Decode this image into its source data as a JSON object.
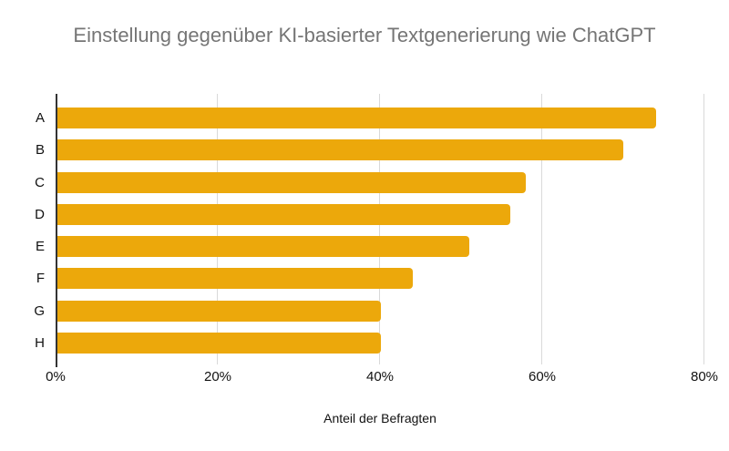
{
  "chart_data": {
    "type": "bar",
    "orientation": "horizontal",
    "title": "Einstellung gegenüber KI-basierter Textgenerierung wie ChatGPT",
    "categories": [
      "A",
      "B",
      "C",
      "D",
      "E",
      "F",
      "G",
      "H"
    ],
    "values": [
      74,
      70,
      58,
      56,
      51,
      44,
      40,
      40
    ],
    "value_unit": "%",
    "xlabel": "Anteil der Befragten",
    "ylabel": "",
    "xlim": [
      0,
      80
    ],
    "xticks": [
      "0%",
      "20%",
      "40%",
      "60%",
      "80%"
    ],
    "grid": true,
    "legend": "none",
    "colors": {
      "bar": "#ECA80B",
      "title_text": "#757575",
      "axis_text": "#111111",
      "gridline": "#D9D9D9",
      "axis_line": "#333333",
      "background": "#FFFFFF"
    }
  }
}
